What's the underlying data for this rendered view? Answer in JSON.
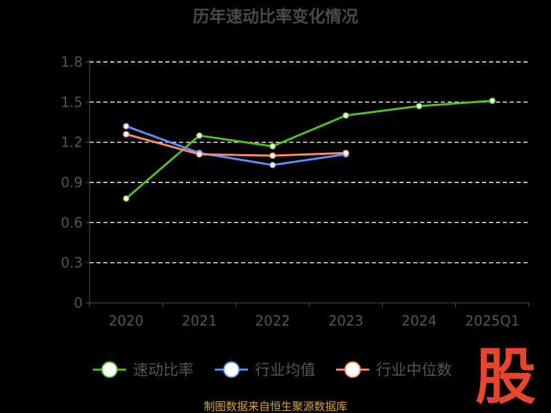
{
  "chart_data": {
    "type": "line",
    "title": "历年速动比率变化情况",
    "categories": [
      "2020",
      "2021",
      "2022",
      "2023",
      "2024",
      "2025Q1"
    ],
    "y_ticks": [
      "0",
      "0.3",
      "0.6",
      "0.9",
      "1.2",
      "1.5",
      "1.8"
    ],
    "ylim": [
      0,
      1.8
    ],
    "grid": true,
    "legend_position": "bottom",
    "series": [
      {
        "name": "速动比率",
        "color": "#52c41a",
        "values": [
          0.78,
          1.25,
          1.17,
          1.4,
          1.47,
          1.51
        ]
      },
      {
        "name": "行业均值",
        "color": "#5b8ff9",
        "values": [
          1.32,
          1.12,
          1.03,
          1.11,
          null,
          null
        ]
      },
      {
        "name": "行业中位数",
        "color": "#ff8c69",
        "values": [
          1.26,
          1.11,
          1.1,
          1.12,
          null,
          null
        ]
      }
    ]
  },
  "source_text": "制图数据来自恒生聚源数据库",
  "logo_text": "股"
}
